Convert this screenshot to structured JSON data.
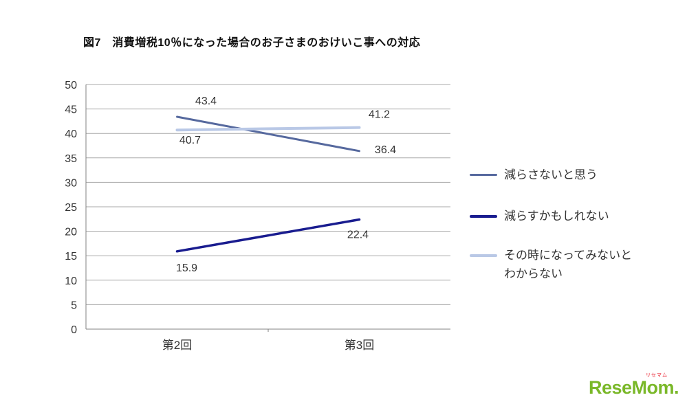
{
  "title": "図7　消費増税10％になった場合のお子さまのおけいこ事への対応",
  "chart_data": {
    "type": "line",
    "categories": [
      "第2回",
      "第3回"
    ],
    "series": [
      {
        "name": "減らさないと思う",
        "values": [
          43.4,
          36.4
        ],
        "color": "#56699e",
        "width": 3,
        "label_offsets": [
          [
            42,
            -18
          ],
          [
            38,
            3
          ]
        ]
      },
      {
        "name": "減らすかもしれない",
        "values": [
          15.9,
          22.4
        ],
        "color": "#191c8f",
        "width": 3.5,
        "label_offsets": [
          [
            14,
            29
          ],
          [
            -2,
            27
          ]
        ]
      },
      {
        "name": "その時になってみないとわからない",
        "values": [
          40.7,
          41.2
        ],
        "color": "#b9c8e6",
        "width": 4,
        "label_offsets": [
          [
            19,
            20
          ],
          [
            29,
            -14
          ]
        ]
      }
    ],
    "ylim": [
      0,
      50
    ],
    "ytick_step": 5,
    "grid": true,
    "legend_position": "right",
    "grid_color": "#a8a8a8",
    "axis_color": "#808080",
    "text_color": "#333333"
  },
  "logo": {
    "text": "ReseMom.",
    "sub": "リセマム"
  }
}
